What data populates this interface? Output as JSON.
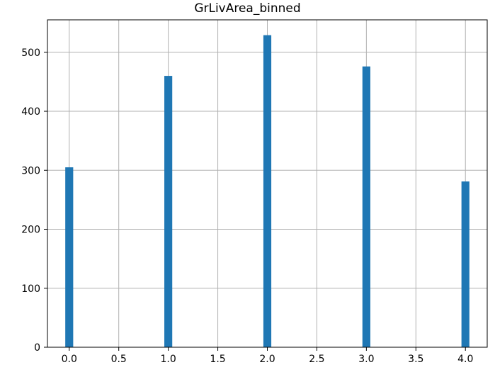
{
  "chart_data": {
    "type": "bar",
    "title": "GrLivArea_binned",
    "xlabel": "",
    "ylabel": "",
    "x": [
      0,
      1,
      2,
      3,
      4
    ],
    "values": [
      305,
      460,
      529,
      476,
      281
    ],
    "bar_width": 0.08,
    "xlim": [
      -0.22,
      4.22
    ],
    "ylim": [
      0,
      555
    ],
    "xticks": [
      0.0,
      0.5,
      1.0,
      1.5,
      2.0,
      2.5,
      3.0,
      3.5,
      4.0
    ],
    "xtick_labels": [
      "0.0",
      "0.5",
      "1.0",
      "1.5",
      "2.0",
      "2.5",
      "3.0",
      "3.5",
      "4.0"
    ],
    "yticks": [
      0,
      100,
      200,
      300,
      400,
      500
    ],
    "ytick_labels": [
      "0",
      "100",
      "200",
      "300",
      "400",
      "500"
    ],
    "grid": true,
    "bar_color": "#1f77b4",
    "grid_color": "#b0b0b0"
  }
}
